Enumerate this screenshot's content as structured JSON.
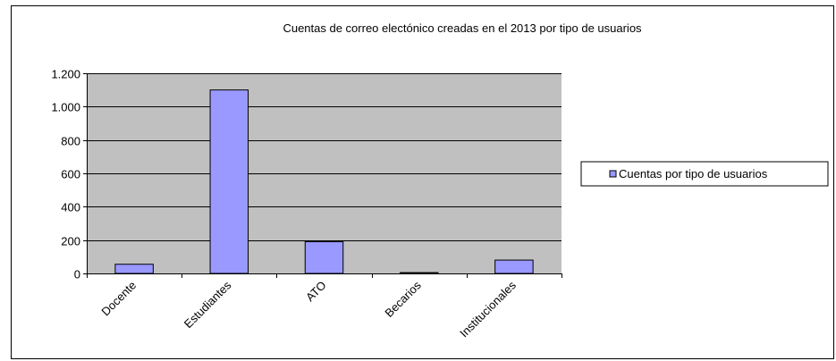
{
  "chart_data": {
    "type": "bar",
    "title": "Cuentas de correo electónico creadas en el 2013 por tipo de usuarios",
    "xlabel": "",
    "ylabel": "",
    "categories": [
      "Docente",
      "Estudiantes",
      "ATO",
      "Becarios",
      "Institucionales"
    ],
    "series": [
      {
        "name": "Cuentas por tipo de usuarios",
        "values": [
          55,
          1100,
          190,
          5,
          80
        ]
      }
    ],
    "ylim": [
      0,
      1200
    ],
    "yticks": [
      0,
      200,
      400,
      600,
      800,
      1000,
      1200
    ],
    "ytick_labels": [
      "0",
      "200",
      "400",
      "600",
      "800",
      "1.000",
      "1.200"
    ],
    "grid": true,
    "legend_position": "right"
  },
  "colors": {
    "plot_background": "#c0c0c0",
    "bar_fill": "#9999ff",
    "bar_stroke": "#000000",
    "gridline": "#000000"
  }
}
